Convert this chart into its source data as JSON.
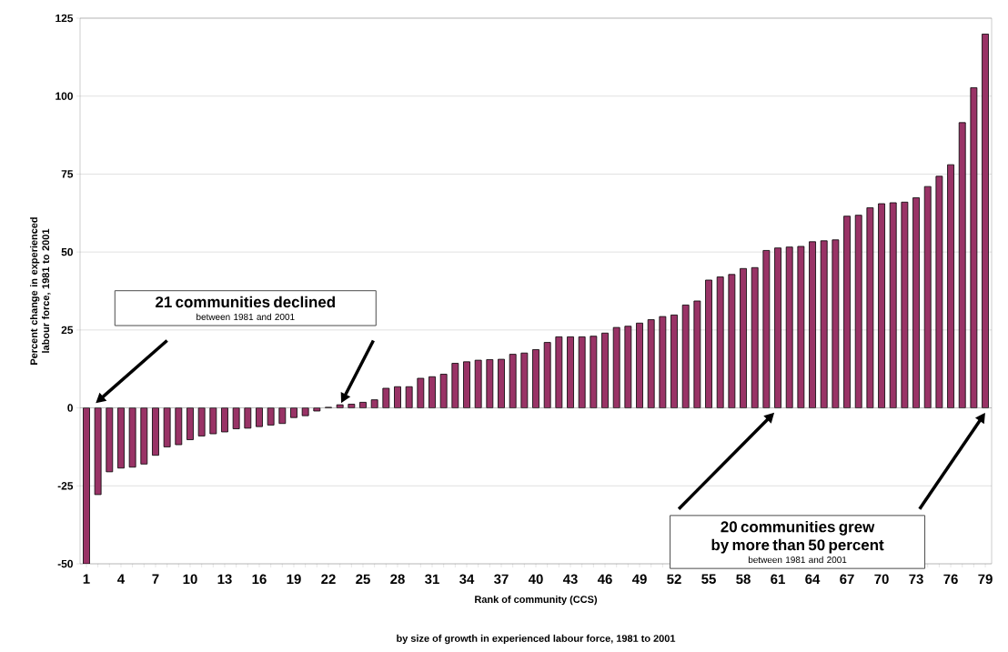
{
  "chart_data": {
    "type": "bar",
    "categories": [
      "1",
      null,
      null,
      "4",
      null,
      null,
      "7",
      null,
      null,
      "10",
      null,
      null,
      "13",
      null,
      null,
      "16",
      null,
      null,
      "19",
      null,
      null,
      "22",
      null,
      null,
      "25",
      null,
      null,
      "28",
      null,
      null,
      "31",
      null,
      null,
      "34",
      null,
      null,
      "37",
      null,
      null,
      "40",
      null,
      null,
      "43",
      null,
      null,
      "46",
      null,
      null,
      "49",
      null,
      null,
      "52",
      null,
      null,
      "55",
      null,
      null,
      "58",
      null,
      null,
      "61",
      null,
      null,
      "64",
      null,
      null,
      "67",
      null,
      null,
      "70",
      null,
      null,
      "73",
      null,
      null,
      "76",
      null,
      null,
      "79"
    ],
    "values": [
      -50,
      -27.8,
      -20.5,
      -19.3,
      -19.0,
      -18.0,
      -15.2,
      -12.5,
      -11.8,
      -10.2,
      -9.0,
      -8.3,
      -7.7,
      -6.7,
      -6.5,
      -6.0,
      -5.5,
      -5.0,
      -3.1,
      -2.5,
      -1.0,
      0.2,
      1.0,
      1.2,
      1.8,
      2.6,
      6.3,
      6.8,
      6.8,
      9.5,
      10.0,
      10.8,
      14.3,
      14.8,
      15.3,
      15.5,
      15.6,
      17.2,
      17.6,
      18.7,
      21.0,
      22.8,
      22.8,
      22.8,
      23.0,
      24.0,
      25.8,
      26.2,
      27.2,
      28.3,
      29.3,
      29.8,
      33.0,
      34.3,
      41.0,
      42.0,
      42.8,
      44.7,
      45.0,
      50.5,
      51.3,
      51.6,
      51.8,
      53.3,
      53.6,
      53.9,
      61.5,
      61.8,
      64.2,
      65.5,
      65.8,
      66.0,
      67.4,
      71.0,
      74.3,
      78.0,
      91.5,
      102.7,
      119.9
    ],
    "color": "#993366",
    "ylim": [
      -50,
      125
    ],
    "yticks": [
      -50,
      -25,
      0,
      25,
      50,
      75,
      100,
      125
    ],
    "grid": "y",
    "ylabel": "Percent change in experienced labour force, 1981 to 2001",
    "xlabel": "Rank of community (CCS)",
    "annotations": [
      "21 communities declined",
      "between 1981 and 2001",
      "20 communities grew by more than 50 percent",
      "between 1981 and 2001",
      "by size of growth in experienced labour force, 1981 to 2001"
    ]
  }
}
